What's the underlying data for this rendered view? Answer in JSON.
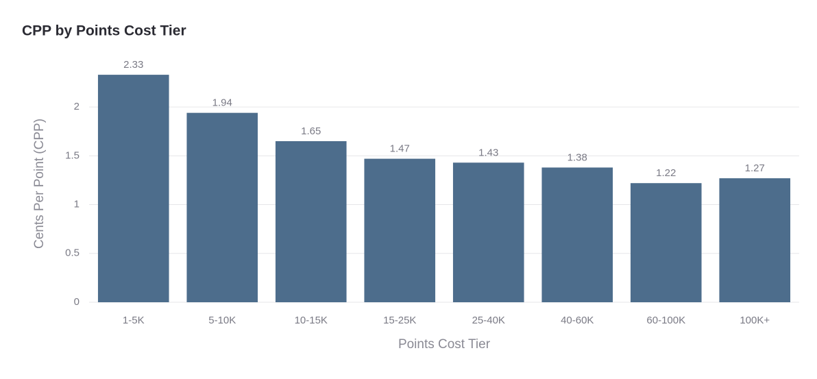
{
  "chart_data": {
    "type": "bar",
    "title": "CPP by Points Cost Tier",
    "x_label": "Points Cost Tier",
    "y_label": "Cents Per Point (CPP)",
    "categories": [
      "1-5K",
      "5-10K",
      "10-15K",
      "15-25K",
      "25-40K",
      "40-60K",
      "60-100K",
      "100K+"
    ],
    "values": [
      2.33,
      1.94,
      1.65,
      1.47,
      1.43,
      1.38,
      1.22,
      1.27
    ],
    "color": "#4d6d8c",
    "ylim": [
      0,
      2.45
    ],
    "yticks": [
      0,
      0.5,
      1,
      1.5,
      2
    ],
    "grid": true
  }
}
